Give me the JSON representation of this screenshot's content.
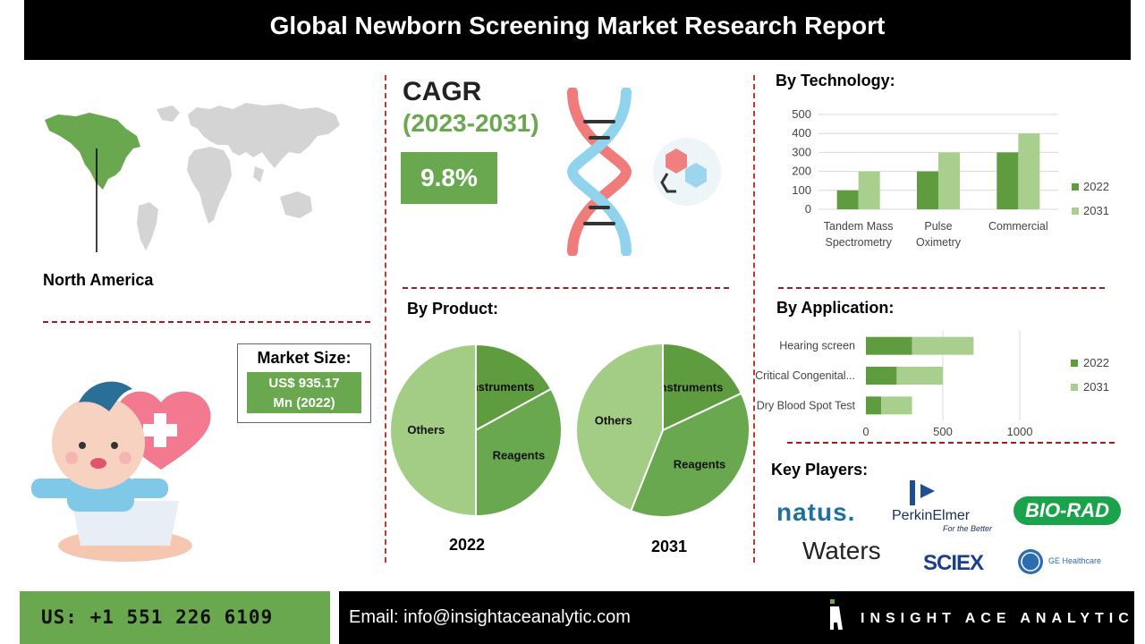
{
  "header": {
    "title": "Global Newborn Screening Market Research Report"
  },
  "region": {
    "label": "North America"
  },
  "cagr": {
    "label": "CAGR",
    "years": "(2023-2031)",
    "value": "9.8%"
  },
  "market_size": {
    "title": "Market Size:",
    "value_line1": "US$ 935.17",
    "value_line2": "Mn (2022)"
  },
  "sections": {
    "technology": "By Technology:",
    "product": "By Product:",
    "application": "By Application:",
    "players": "Key Players:"
  },
  "key_players": {
    "natus": "natus.",
    "perkinelmer": "PerkinElmer",
    "perkinelmer_tag": "For the Better",
    "biorad": "BIO-RAD",
    "waters": "Waters",
    "sciex": "SCIEX",
    "ge": "GE Healthcare"
  },
  "footer": {
    "phone": "US: +1 551 226 6109",
    "email": "Email: info@insightaceanalytic.com",
    "brand": "INSIGHT ACE ANALYTIC"
  },
  "colors": {
    "dark_green": "#5f9b3f",
    "light_green": "#a8cf8e",
    "accent_red": "#c0392b"
  },
  "chart_data": [
    {
      "type": "bar",
      "title": "By Technology:",
      "categories": [
        "Tandem Mass Spectrometry",
        "Pulse Oximetry",
        "Commercial"
      ],
      "category_lines": [
        [
          "Tandem Mass",
          "Spectrometry"
        ],
        [
          "Pulse",
          "Oximetry"
        ],
        [
          "Commercial"
        ]
      ],
      "series": [
        {
          "name": "2022",
          "values": [
            100,
            200,
            300
          ]
        },
        {
          "name": "2031",
          "values": [
            200,
            300,
            400
          ]
        }
      ],
      "ylim": [
        0,
        500
      ],
      "yticks": [
        0,
        100,
        200,
        300,
        400,
        500
      ],
      "grid": true,
      "legend": "right"
    },
    {
      "type": "bar",
      "orientation": "horizontal",
      "stacked": true,
      "title": "By Application:",
      "categories": [
        "Hearing screen",
        "Critical Congenital...",
        "Dry Blood Spot Test"
      ],
      "series": [
        {
          "name": "2022",
          "values": [
            300,
            200,
            100
          ]
        },
        {
          "name": "2031",
          "values": [
            400,
            300,
            200
          ]
        }
      ],
      "xlim": [
        0,
        1000
      ],
      "xticks": [
        0,
        500,
        1000
      ],
      "legend": "right"
    },
    {
      "type": "pie",
      "title": "2022",
      "labels": [
        "Instruments",
        "Reagents",
        "Others"
      ],
      "values": [
        17,
        33,
        50
      ]
    },
    {
      "type": "pie",
      "title": "2031",
      "labels": [
        "Instruments",
        "Reagents",
        "Others"
      ],
      "values": [
        18,
        38,
        44
      ]
    }
  ]
}
